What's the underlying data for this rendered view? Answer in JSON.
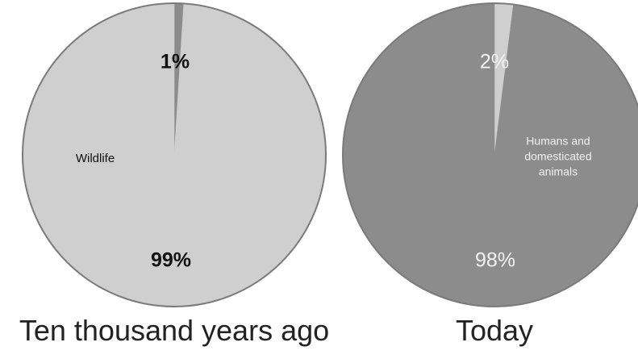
{
  "chart_data": [
    {
      "type": "pie",
      "title": "Ten thousand years ago",
      "slices": [
        {
          "label": "Humans and domesticated animals",
          "value": 1,
          "value_label": "1%",
          "color": "#8c8c8c"
        },
        {
          "label": "Wildlife",
          "value": 99,
          "value_label": "99%",
          "color": "#cfcfcf"
        }
      ],
      "category_label": "Wildlife",
      "label_color": "#111111"
    },
    {
      "type": "pie",
      "title": "Today",
      "slices": [
        {
          "label": "Wildlife",
          "value": 2,
          "value_label": "2%",
          "color": "#cfcfcf"
        },
        {
          "label": "Humans and domesticated animals",
          "value": 98,
          "value_label": "98%",
          "color": "#8c8c8c"
        }
      ],
      "category_label_lines": [
        "Humans and",
        "domesticated",
        "animals"
      ],
      "label_color": "#f2f2f2"
    }
  ]
}
